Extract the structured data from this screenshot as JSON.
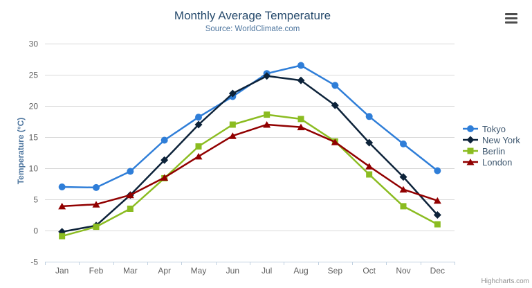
{
  "chart_data": {
    "type": "line",
    "title": "Monthly Average Temperature",
    "subtitle": "Source: WorldClimate.com",
    "xlabel": "",
    "ylabel": "Temperature (°C)",
    "categories": [
      "Jan",
      "Feb",
      "Mar",
      "Apr",
      "May",
      "Jun",
      "Jul",
      "Aug",
      "Sep",
      "Oct",
      "Nov",
      "Dec"
    ],
    "ylim": [
      -5,
      30
    ],
    "ytick_interval": 5,
    "grid": true,
    "legend_position": "right",
    "series": [
      {
        "name": "Tokyo",
        "color": "#2f7ed8",
        "marker": "circle",
        "values": [
          7.0,
          6.9,
          9.5,
          14.5,
          18.2,
          21.5,
          25.2,
          26.5,
          23.3,
          18.3,
          13.9,
          9.6
        ]
      },
      {
        "name": "New York",
        "color": "#0d233a",
        "marker": "diamond",
        "values": [
          -0.2,
          0.8,
          5.7,
          11.3,
          17.0,
          22.0,
          24.8,
          24.1,
          20.1,
          14.1,
          8.6,
          2.5
        ]
      },
      {
        "name": "Berlin",
        "color": "#8bbc21",
        "marker": "square",
        "values": [
          -0.9,
          0.6,
          3.5,
          8.4,
          13.5,
          17.0,
          18.6,
          17.9,
          14.3,
          9.0,
          3.9,
          1.0
        ]
      },
      {
        "name": "London",
        "color": "#910000",
        "marker": "triangle",
        "values": [
          3.9,
          4.2,
          5.7,
          8.5,
          11.9,
          15.2,
          17.0,
          16.6,
          14.2,
          10.3,
          6.6,
          4.8
        ]
      }
    ]
  },
  "credits": {
    "label": "Highcharts.com"
  },
  "menu": {
    "icon": "hamburger-icon"
  },
  "colors": {
    "title": "#274b6d",
    "subtitle": "#4d759e",
    "axis_title": "#4d759e",
    "axis_label": "#606060",
    "grid_line": "#d8d8d8",
    "axis_line": "#c0d0e0",
    "legend_text": "#3e576f",
    "credits": "#909090",
    "menu_icon": "#4d4d4d",
    "background": "#ffffff"
  }
}
